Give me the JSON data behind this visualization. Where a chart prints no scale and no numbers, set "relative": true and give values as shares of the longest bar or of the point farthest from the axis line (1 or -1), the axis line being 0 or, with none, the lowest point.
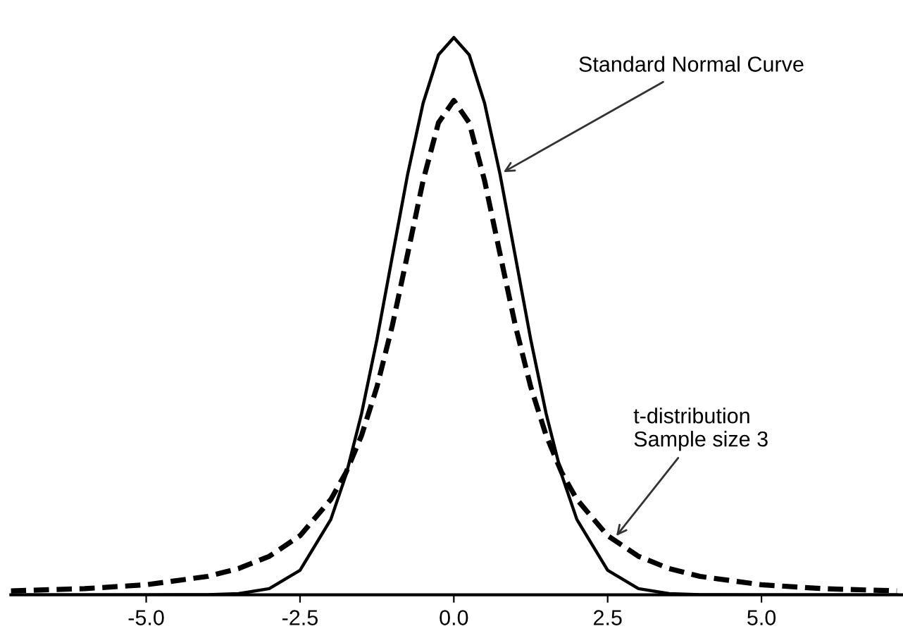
{
  "chart_data": {
    "type": "line",
    "relative": true,
    "xlim": [
      -7.2,
      7.3
    ],
    "xticks": [
      {
        "value": -5,
        "label": "-5.0"
      },
      {
        "value": -2.5,
        "label": "-2.5"
      },
      {
        "value": 0,
        "label": "0.0"
      },
      {
        "value": 2.5,
        "label": "2.5"
      },
      {
        "value": 5,
        "label": "5.0"
      }
    ],
    "tick_labels": "x",
    "grid": false,
    "legend": false,
    "marker": "none",
    "series": [
      {
        "color": "#000000",
        "line_style": "solid",
        "x": [
          -7.2,
          -5,
          -4,
          -3.5,
          -3,
          -2.5,
          -2,
          -1.75,
          -1.5,
          -1.25,
          -1,
          -0.75,
          -0.5,
          -0.25,
          0,
          0.25,
          0.5,
          0.75,
          1,
          1.25,
          1.5,
          1.75,
          2,
          2.5,
          3,
          3.5,
          4,
          5,
          7.2
        ],
        "values": [
          0,
          0,
          0.0003,
          0.002,
          0.011,
          0.044,
          0.135,
          0.216,
          0.325,
          0.458,
          0.607,
          0.755,
          0.882,
          0.969,
          1,
          0.969,
          0.882,
          0.755,
          0.607,
          0.458,
          0.325,
          0.216,
          0.135,
          0.044,
          0.011,
          0.002,
          0.0003,
          0,
          0
        ]
      },
      {
        "color": "#000000",
        "line_style": "dashed",
        "x": [
          -7.2,
          -6,
          -5,
          -4,
          -3.5,
          -3,
          -2.5,
          -2,
          -1.75,
          -1.5,
          -1.25,
          -1,
          -0.75,
          -0.5,
          -0.25,
          0,
          0.25,
          0.5,
          0.75,
          1,
          1.25,
          1.5,
          1.75,
          2,
          2.5,
          3,
          3.5,
          4,
          5,
          6,
          7.2
        ],
        "values": [
          0.007,
          0.011,
          0.018,
          0.033,
          0.047,
          0.069,
          0.106,
          0.171,
          0.22,
          0.286,
          0.373,
          0.483,
          0.612,
          0.743,
          0.847,
          0.887,
          0.847,
          0.743,
          0.612,
          0.483,
          0.373,
          0.286,
          0.22,
          0.171,
          0.106,
          0.069,
          0.047,
          0.033,
          0.018,
          0.011,
          0.007
        ]
      }
    ],
    "annotations": [
      {
        "text": "Standard Normal Curve",
        "x": 0.75,
        "y": 0.755
      },
      {
        "text": "t-distribution\nSample size 3",
        "x": 2.6,
        "y": 0.1
      }
    ]
  }
}
